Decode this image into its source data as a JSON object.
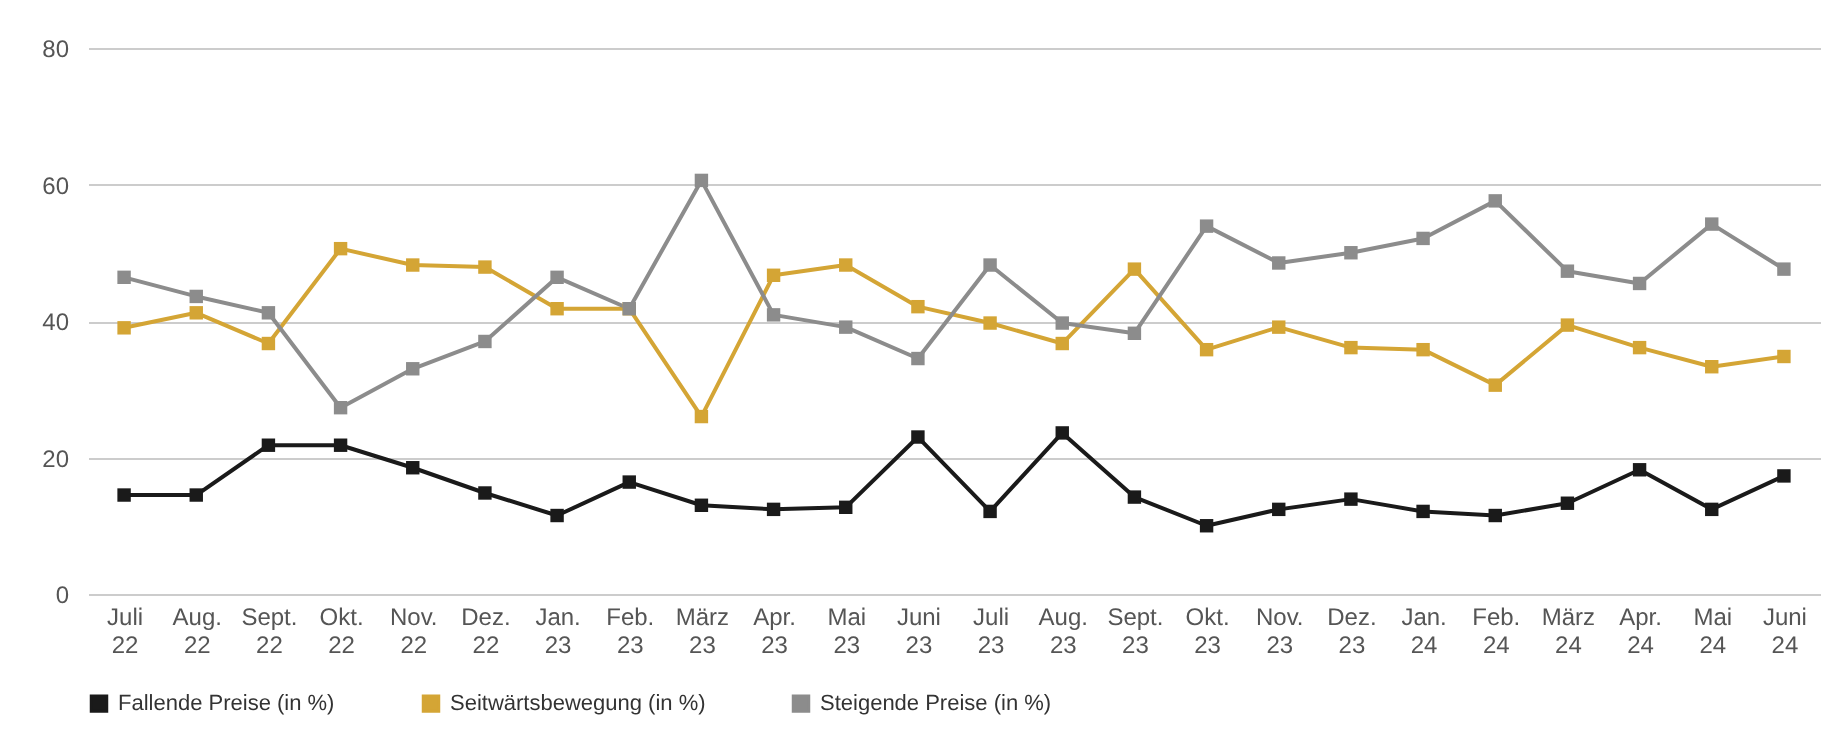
{
  "chart_data": {
    "type": "line",
    "categories": [
      "Juli 22",
      "Aug. 22",
      "Sept. 22",
      "Okt. 22",
      "Nov. 22",
      "Dez. 22",
      "Jan. 23",
      "Feb. 23",
      "März 23",
      "Apr. 23",
      "Mai 23",
      "Juni 23",
      "Juli 23",
      "Aug. 23",
      "Sept. 23",
      "Okt. 23",
      "Nov. 23",
      "Dez. 23",
      "Jan. 24",
      "Feb. 24",
      "März 24",
      "Apr. 24",
      "Mai 24",
      "Juni 24"
    ],
    "series": [
      {
        "name": "Fallende Preise (in %)",
        "color": "#1a1a1a",
        "values": [
          14.5,
          14.5,
          21.8,
          21.8,
          18.5,
          14.8,
          11.5,
          16.4,
          13,
          12.4,
          12.7,
          23,
          12.1,
          23.6,
          14.2,
          10,
          12.4,
          13.9,
          12.1,
          11.5,
          13.3,
          18.2,
          12.4,
          17.3
        ]
      },
      {
        "name": "Seitwärtsbewegung (in %)",
        "color": "#d4a535",
        "values": [
          39,
          41.2,
          36.7,
          50.6,
          48.2,
          47.9,
          41.8,
          41.8,
          26,
          46.7,
          48.2,
          42.1,
          39.7,
          36.7,
          47.6,
          35.8,
          39.1,
          36.1,
          35.8,
          30.6,
          39.4,
          36.1,
          33.3,
          34.8
        ]
      },
      {
        "name": "Steigende Preise (in %)",
        "color": "#8c8c8c",
        "values": [
          46.4,
          43.6,
          41.2,
          27.3,
          33,
          37,
          46.4,
          41.8,
          60.6,
          40.9,
          39.1,
          34.5,
          48.2,
          39.7,
          38.2,
          53.9,
          48.5,
          50,
          52.1,
          57.6,
          47.3,
          45.5,
          54.2,
          47.6
        ]
      }
    ],
    "ylim": [
      0,
      80
    ],
    "yticks": [
      0,
      20,
      40,
      60,
      80
    ],
    "grid": "y",
    "legend": "bottom",
    "marker": "square",
    "line_style": "solid"
  }
}
